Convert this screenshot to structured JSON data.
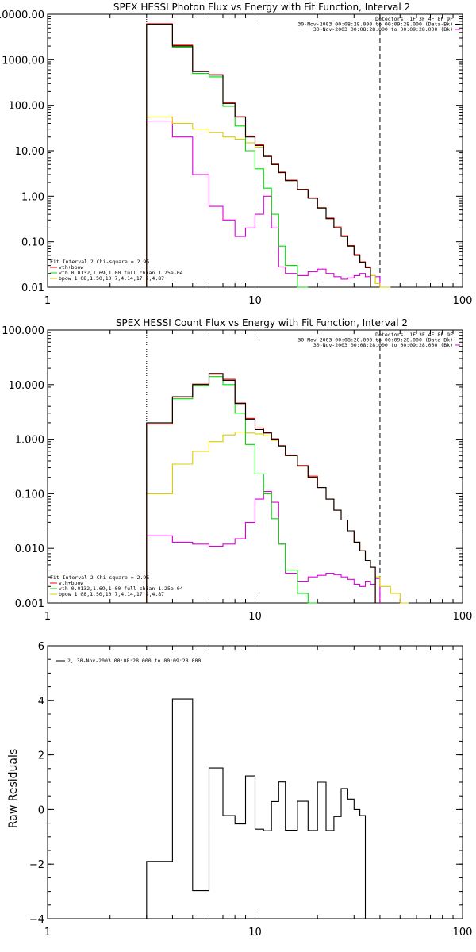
{
  "colors": {
    "data": "#000000",
    "thermal": "#ff0000",
    "vth": "#00dd00",
    "bpow": "#ddcc00",
    "bk": "#dd00dd"
  },
  "chart_data": [
    {
      "type": "line",
      "title": "SPEX HESSI Photon Flux vs Energy with Fit Function, Interval 2",
      "xscale": "log",
      "yscale": "log",
      "xlim": [
        1,
        100
      ],
      "ylim": [
        0.01,
        10000
      ],
      "yticks": [
        "10000.00",
        "1000.00",
        "100.00",
        "10.00",
        "1.00",
        "0.10",
        "0.01"
      ],
      "xticks": [
        "1",
        "10",
        "100"
      ],
      "vlines": [
        {
          "x": 3,
          "style": "dotted"
        },
        {
          "x": 40,
          "style": "dashed"
        }
      ],
      "header": [
        "Detectors: 1F 3F 4F 8F 9F",
        "30-Nov-2003 00:08:28.000 to 00:09:28.000 (Data-Bk)",
        "30-Nov-2003 00:08:28.000 to 00:09:28.000 (Bk)"
      ],
      "legend": [
        "Fit Interval 2   Chi-square = 2.95",
        "vth+bpow",
        "vth 0.0132,1.69,1.00  full chian 1.25e-04",
        "bpow 1.08,1.50,10.7,4.14,17.2,4.87"
      ],
      "edges": [
        3,
        4,
        5,
        6,
        7,
        8,
        9,
        10,
        11,
        12,
        13,
        14,
        16,
        18,
        20,
        22,
        24,
        26,
        28,
        30,
        32,
        34,
        36,
        38,
        40,
        45,
        50
      ],
      "series": [
        {
          "name": "data",
          "color_key": "data",
          "values": [
            6000,
            2000,
            550,
            460,
            110,
            55,
            20,
            13,
            7.5,
            5,
            3.3,
            2.2,
            1.4,
            0.9,
            0.55,
            0.32,
            0.2,
            0.13,
            0.08,
            0.05,
            0.035,
            0.027,
            null,
            null,
            null,
            null
          ]
        },
        {
          "name": "vth+bpow",
          "color_key": "thermal",
          "values": [
            6200,
            2100,
            560,
            470,
            115,
            56,
            21,
            13.5,
            7.6,
            5.1,
            3.4,
            2.25,
            1.42,
            0.92,
            0.56,
            0.33,
            0.21,
            0.135,
            0.082,
            0.052,
            0.036,
            0.028,
            null,
            null,
            null,
            null
          ]
        },
        {
          "name": "vth",
          "color_key": "vth",
          "values": [
            6000,
            1900,
            500,
            420,
            95,
            35,
            10,
            4,
            1.5,
            0.4,
            0.08,
            0.03,
            0.01,
            null,
            null,
            null,
            null,
            null,
            null,
            null,
            null,
            null,
            null,
            null,
            null,
            null
          ]
        },
        {
          "name": "bpow",
          "color_key": "bpow",
          "values": [
            55,
            40,
            30,
            25,
            20,
            18,
            15,
            12,
            7.5,
            5,
            3.3,
            2.2,
            1.4,
            0.9,
            0.55,
            0.32,
            0.2,
            0.13,
            0.08,
            0.05,
            0.035,
            0.027,
            0.018,
            0.012,
            0.01,
            null
          ]
        },
        {
          "name": "Bk",
          "color_key": "bk",
          "values": [
            45,
            20,
            3,
            0.6,
            0.3,
            0.13,
            0.2,
            0.4,
            1.0,
            0.2,
            0.028,
            0.02,
            0.018,
            0.022,
            0.025,
            0.02,
            0.017,
            0.015,
            0.016,
            0.018,
            0.02,
            0.017,
            0.018,
            0.017,
            null,
            null
          ]
        }
      ]
    },
    {
      "type": "line",
      "title": "SPEX HESSI Count Flux vs Energy with Fit Function, Interval 2",
      "xscale": "log",
      "yscale": "log",
      "xlim": [
        1,
        100
      ],
      "ylim": [
        0.001,
        100
      ],
      "yticks": [
        "100.000",
        "10.000",
        "1.000",
        "0.100",
        "0.010",
        "0.001"
      ],
      "xticks": [
        "1",
        "10",
        "100"
      ],
      "vlines": [
        {
          "x": 3,
          "style": "dotted"
        },
        {
          "x": 40,
          "style": "dashed"
        }
      ],
      "header": [
        "Detectors: 1F 3F 4F 8F 9F",
        "30-Nov-2003 00:08:28.000 to 00:09:28.000 (Data-Bk)",
        "30-Nov-2003 00:08:28.000 to 00:09:28.000 (Bk)"
      ],
      "legend": [
        "Fit Interval 2   Chi-square = 2.95",
        "vth+bpow",
        "vth 0.0132,1.69,1.00  full chian 1.25e-04",
        "bpow 1.08,1.50,10.7,4.14,17.2,4.87"
      ],
      "edges": [
        3,
        4,
        5,
        6,
        7,
        8,
        9,
        10,
        11,
        12,
        13,
        14,
        16,
        18,
        20,
        22,
        24,
        26,
        28,
        30,
        32,
        34,
        36,
        38,
        40,
        45,
        50,
        55,
        60
      ],
      "series": [
        {
          "name": "data",
          "color_key": "data",
          "values": [
            2,
            6,
            10,
            16,
            12,
            4.5,
            2.3,
            1.5,
            1.3,
            1,
            0.75,
            0.5,
            0.32,
            0.2,
            0.13,
            0.08,
            0.05,
            0.033,
            0.021,
            0.013,
            0.009,
            0.006,
            0.0045,
            null,
            null,
            null,
            null,
            null
          ]
        },
        {
          "name": "vth+bpow",
          "color_key": "thermal",
          "values": [
            1.9,
            5.9,
            10.2,
            15.5,
            12.5,
            4.6,
            2.4,
            1.6,
            1.32,
            1.02,
            0.76,
            0.51,
            0.33,
            0.21,
            0.13,
            0.08,
            0.05,
            0.033,
            0.021,
            0.013,
            0.009,
            0.006,
            0.0045,
            null,
            null,
            null,
            null,
            null
          ]
        },
        {
          "name": "vth",
          "color_key": "vth",
          "values": [
            1.9,
            5.5,
            9.5,
            14,
            10,
            3,
            0.8,
            0.23,
            0.1,
            0.035,
            0.012,
            0.004,
            0.0015,
            0.001,
            null,
            null,
            null,
            null,
            null,
            null,
            null,
            null,
            null,
            null,
            null,
            null,
            null,
            null
          ]
        },
        {
          "name": "bpow",
          "color_key": "bpow",
          "values": [
            0.1,
            0.35,
            0.6,
            0.9,
            1.2,
            1.35,
            1.3,
            1.25,
            1.15,
            0.95,
            0.75,
            0.5,
            0.32,
            0.2,
            0.13,
            0.08,
            0.05,
            0.033,
            0.021,
            0.013,
            0.009,
            0.006,
            0.0045,
            0.003,
            0.002,
            0.0015,
            0.001,
            null
          ]
        },
        {
          "name": "Bk",
          "color_key": "bk",
          "values": [
            0.017,
            0.013,
            0.012,
            0.011,
            0.012,
            0.015,
            0.03,
            0.08,
            0.11,
            0.07,
            0.012,
            0.0035,
            0.0025,
            0.003,
            0.0032,
            0.0035,
            0.0033,
            0.003,
            0.0027,
            0.0022,
            0.002,
            0.0025,
            0.0022,
            0.0028,
            null,
            null,
            null,
            null
          ]
        }
      ]
    },
    {
      "type": "line",
      "title": "",
      "xscale": "log",
      "yscale": "linear",
      "xlim": [
        1,
        100
      ],
      "ylim": [
        -4,
        6
      ],
      "yticks": [
        "6",
        "4",
        "2",
        "0",
        "−2",
        "−4"
      ],
      "xticks": [
        "1",
        "10",
        "100"
      ],
      "ylabel": "Raw Residuals",
      "legend": [
        "2, 30-Nov-2003 00:08:28.000 to 00:09:28.000"
      ],
      "edges": [
        3,
        4,
        5,
        6,
        7,
        8,
        9,
        10,
        11,
        12,
        13,
        14,
        16,
        18,
        20,
        22,
        24,
        26,
        28,
        30,
        32,
        34,
        36,
        38,
        40
      ],
      "series": [
        {
          "name": "residual",
          "color_key": "data",
          "values": [
            -1.9,
            4.05,
            -2.97,
            1.52,
            -0.22,
            -0.53,
            1.23,
            -0.72,
            -0.78,
            0.29,
            1.01,
            -0.76,
            0.3,
            -0.77,
            1.0,
            -0.77,
            -0.26,
            0.77,
            0.38,
            0.0,
            -0.22,
            null,
            null,
            null
          ]
        }
      ]
    }
  ]
}
